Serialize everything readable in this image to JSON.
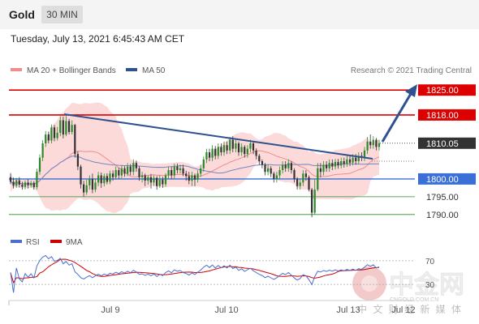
{
  "header": {
    "symbol": "Gold",
    "timeframe": "30 MIN"
  },
  "datetime": "Tuesday, July 13, 2021 6:45:43 AM CET",
  "legend": [
    {
      "label": "MA 20 + Bollinger Bands",
      "color": "#f08c8c"
    },
    {
      "label": "MA 50",
      "color": "#2e5190"
    }
  ],
  "copyright": "Research © 2021 Trading Central",
  "watermark": {
    "cn_big": "中金网",
    "domain": "CNGOLD.COM.CN",
    "cn_small": "中 文 财 经 新 媒 体"
  },
  "colors": {
    "resistance": "#dd0000",
    "support": "#3a6fd8",
    "secondary_support": "#2c8a2c",
    "current": "#333333",
    "candle_up": "#2a8a2a",
    "candle_down": "#333333",
    "bollinger_fill": "#fcdada",
    "arrow": "#2e5190"
  },
  "chart_data": {
    "type": "candlestick",
    "price_axis": {
      "range": [
        1787,
        1828
      ],
      "levels": [
        {
          "value": 1825.0,
          "label": "1825.00",
          "kind": "resistance"
        },
        {
          "value": 1818.0,
          "label": "1818.00",
          "kind": "resistance"
        },
        {
          "value": 1810.05,
          "label": "1810.05",
          "kind": "current"
        },
        {
          "value": 1800.0,
          "label": "1800.00",
          "kind": "support"
        },
        {
          "value": 1795.0,
          "label": "1795.00",
          "kind": "support-minor"
        },
        {
          "value": 1790.0,
          "label": "1790.00",
          "kind": "support-minor"
        }
      ]
    },
    "time_axis": {
      "ticks": [
        "Jul 9",
        "Jul 10",
        "Jul 13",
        "Jul 12"
      ]
    },
    "candles": [
      [
        1800.5,
        1799.2,
        1801.6,
        1798.5
      ],
      [
        1799.2,
        1798.1,
        1800.4,
        1797.3
      ],
      [
        1798.1,
        1799.6,
        1800.3,
        1797.5
      ],
      [
        1799.6,
        1798.4,
        1800.5,
        1797.6
      ],
      [
        1798.4,
        1797.8,
        1799.2,
        1797.0
      ],
      [
        1797.8,
        1799.0,
        1799.6,
        1797.1
      ],
      [
        1799.0,
        1798.2,
        1799.9,
        1797.3
      ],
      [
        1798.2,
        1798.9,
        1799.5,
        1797.6
      ],
      [
        1798.9,
        1797.7,
        1799.4,
        1797.0
      ],
      [
        1797.7,
        1802.0,
        1802.9,
        1797.1
      ],
      [
        1802.0,
        1806.0,
        1806.9,
        1801.2
      ],
      [
        1806.0,
        1810.0,
        1810.9,
        1805.0
      ],
      [
        1810.0,
        1812.5,
        1813.5,
        1809.0
      ],
      [
        1812.5,
        1810.8,
        1813.3,
        1810.0
      ],
      [
        1810.8,
        1814.5,
        1815.3,
        1810.0
      ],
      [
        1814.5,
        1811.5,
        1815.2,
        1810.6
      ],
      [
        1811.5,
        1813.0,
        1814.6,
        1810.8
      ],
      [
        1813.0,
        1816.5,
        1817.6,
        1812.0
      ],
      [
        1816.5,
        1812.5,
        1817.5,
        1811.4
      ],
      [
        1812.5,
        1816.3,
        1817.7,
        1812.0
      ],
      [
        1816.3,
        1813.2,
        1816.9,
        1812.5
      ],
      [
        1813.2,
        1815.2,
        1816.5,
        1812.5
      ],
      [
        1815.2,
        1807.0,
        1815.5,
        1806.0
      ],
      [
        1807.0,
        1803.5,
        1807.8,
        1802.5
      ],
      [
        1803.5,
        1798.5,
        1804.0,
        1797.3
      ],
      [
        1798.5,
        1796.2,
        1799.5,
        1795.0
      ],
      [
        1796.2,
        1798.2,
        1799.8,
        1795.5
      ],
      [
        1798.2,
        1800.0,
        1801.0,
        1797.0
      ],
      [
        1800.0,
        1797.0,
        1801.5,
        1796.0
      ],
      [
        1797.0,
        1799.0,
        1800.0,
        1796.3
      ],
      [
        1799.0,
        1801.0,
        1802.0,
        1798.0
      ],
      [
        1801.0,
        1798.8,
        1801.8,
        1797.5
      ],
      [
        1798.8,
        1800.8,
        1801.5,
        1797.9
      ],
      [
        1800.8,
        1799.2,
        1801.6,
        1798.5
      ],
      [
        1799.2,
        1801.5,
        1802.3,
        1798.5
      ],
      [
        1801.5,
        1800.5,
        1802.4,
        1799.5
      ],
      [
        1800.5,
        1802.5,
        1803.5,
        1799.8
      ],
      [
        1802.5,
        1801.0,
        1803.2,
        1800.0
      ],
      [
        1801.0,
        1803.0,
        1803.8,
        1800.2
      ],
      [
        1803.0,
        1801.5,
        1803.6,
        1800.6
      ],
      [
        1801.5,
        1803.5,
        1804.5,
        1800.8
      ],
      [
        1803.5,
        1802.0,
        1804.2,
        1801.0
      ],
      [
        1802.0,
        1804.5,
        1805.5,
        1801.0
      ],
      [
        1804.5,
        1803.0,
        1805.2,
        1802.0
      ],
      [
        1803.0,
        1800.5,
        1803.6,
        1799.5
      ],
      [
        1800.5,
        1801.0,
        1802.0,
        1799.0
      ],
      [
        1801.0,
        1799.5,
        1801.5,
        1798.0
      ],
      [
        1799.5,
        1800.5,
        1801.0,
        1798.4
      ],
      [
        1800.5,
        1799.0,
        1801.4,
        1797.3
      ],
      [
        1799.0,
        1800.3,
        1801.0,
        1798.0
      ],
      [
        1800.3,
        1798.0,
        1800.8,
        1797.0
      ],
      [
        1798.0,
        1799.8,
        1801.0,
        1797.5
      ],
      [
        1799.8,
        1798.5,
        1800.6,
        1797.5
      ],
      [
        1798.5,
        1801.0,
        1801.6,
        1797.8
      ],
      [
        1801.0,
        1802.5,
        1803.5,
        1800.0
      ],
      [
        1802.5,
        1801.0,
        1803.5,
        1800.0
      ],
      [
        1801.0,
        1803.5,
        1804.3,
        1800.1
      ],
      [
        1803.5,
        1802.5,
        1804.3,
        1801.5
      ],
      [
        1802.5,
        1803.0,
        1804.0,
        1801.5
      ],
      [
        1803.0,
        1801.5,
        1804.0,
        1800.8
      ],
      [
        1801.5,
        1800.8,
        1802.3,
        1799.5
      ],
      [
        1800.8,
        1799.5,
        1802.0,
        1798.5
      ],
      [
        1799.5,
        1801.0,
        1802.0,
        1798.0
      ],
      [
        1801.0,
        1799.8,
        1801.5,
        1798.0
      ],
      [
        1799.8,
        1801.5,
        1802.4,
        1799.0
      ],
      [
        1801.5,
        1803.0,
        1804.0,
        1800.6
      ],
      [
        1803.0,
        1805.5,
        1806.3,
        1802.0
      ],
      [
        1805.5,
        1807.5,
        1808.5,
        1804.5
      ],
      [
        1807.5,
        1806.0,
        1808.5,
        1805.0
      ],
      [
        1806.0,
        1808.5,
        1809.5,
        1805.0
      ],
      [
        1808.5,
        1806.5,
        1809.3,
        1805.5
      ],
      [
        1806.5,
        1809.0,
        1810.0,
        1805.6
      ],
      [
        1809.0,
        1807.5,
        1810.0,
        1806.5
      ],
      [
        1807.5,
        1809.5,
        1810.5,
        1806.5
      ],
      [
        1809.5,
        1808.0,
        1810.5,
        1807.0
      ],
      [
        1808.0,
        1811.0,
        1811.8,
        1807.0
      ],
      [
        1811.0,
        1808.5,
        1812.0,
        1807.5
      ],
      [
        1808.5,
        1810.0,
        1811.0,
        1807.5
      ],
      [
        1810.0,
        1807.5,
        1810.5,
        1806.5
      ],
      [
        1807.5,
        1809.0,
        1810.0,
        1806.5
      ],
      [
        1809.0,
        1807.0,
        1809.5,
        1806.0
      ],
      [
        1807.0,
        1808.5,
        1809.5,
        1806.0
      ],
      [
        1808.5,
        1810.0,
        1811.0,
        1807.5
      ],
      [
        1810.0,
        1808.0,
        1810.5,
        1807.0
      ],
      [
        1808.0,
        1806.5,
        1808.6,
        1805.5
      ],
      [
        1806.5,
        1805.0,
        1807.0,
        1804.0
      ],
      [
        1805.0,
        1804.0,
        1805.5,
        1803.0
      ],
      [
        1804.0,
        1802.0,
        1804.5,
        1801.0
      ],
      [
        1802.0,
        1803.0,
        1804.0,
        1801.0
      ],
      [
        1803.0,
        1801.5,
        1803.6,
        1800.5
      ],
      [
        1801.5,
        1800.0,
        1802.0,
        1799.0
      ],
      [
        1800.0,
        1801.0,
        1802.0,
        1799.0
      ],
      [
        1801.0,
        1802.5,
        1803.5,
        1800.0
      ],
      [
        1802.5,
        1804.0,
        1805.0,
        1801.5
      ],
      [
        1804.0,
        1803.0,
        1805.0,
        1802.0
      ],
      [
        1803.0,
        1804.5,
        1805.5,
        1802.0
      ],
      [
        1804.5,
        1802.5,
        1805.0,
        1801.5
      ],
      [
        1802.5,
        1800.0,
        1803.0,
        1799.0
      ],
      [
        1800.0,
        1798.0,
        1800.5,
        1797.0
      ],
      [
        1798.0,
        1799.0,
        1800.0,
        1797.0
      ],
      [
        1799.0,
        1801.5,
        1802.5,
        1798.0
      ],
      [
        1801.5,
        1800.5,
        1802.5,
        1799.5
      ],
      [
        1800.5,
        1797.0,
        1801.0,
        1796.5
      ],
      [
        1797.0,
        1790.5,
        1797.5,
        1789.2
      ],
      [
        1790.5,
        1797.0,
        1800.0,
        1790.0
      ],
      [
        1797.0,
        1803.0,
        1804.5,
        1796.5
      ],
      [
        1803.0,
        1802.0,
        1804.5,
        1800.5
      ],
      [
        1802.0,
        1804.0,
        1805.0,
        1801.0
      ],
      [
        1804.0,
        1803.0,
        1805.0,
        1802.0
      ],
      [
        1803.0,
        1804.5,
        1805.5,
        1802.0
      ],
      [
        1804.5,
        1803.5,
        1805.5,
        1802.5
      ],
      [
        1803.5,
        1804.8,
        1805.6,
        1802.7
      ],
      [
        1804.8,
        1803.8,
        1805.6,
        1802.9
      ],
      [
        1803.8,
        1805.0,
        1806.0,
        1803.0
      ],
      [
        1805.0,
        1804.2,
        1806.0,
        1803.2
      ],
      [
        1804.2,
        1805.5,
        1806.5,
        1803.4
      ],
      [
        1805.5,
        1804.6,
        1806.5,
        1803.6
      ],
      [
        1804.6,
        1806.0,
        1807.0,
        1803.8
      ],
      [
        1806.0,
        1805.0,
        1807.0,
        1804.0
      ],
      [
        1805.0,
        1806.5,
        1807.5,
        1804.2
      ],
      [
        1806.5,
        1806.0,
        1807.5,
        1805.0
      ],
      [
        1806.0,
        1808.0,
        1809.0,
        1805.0
      ],
      [
        1808.0,
        1810.5,
        1811.8,
        1807.0
      ],
      [
        1810.5,
        1809.5,
        1812.5,
        1808.5
      ],
      [
        1809.5,
        1811.0,
        1812.0,
        1808.5
      ],
      [
        1811.0,
        1809.0,
        1811.5,
        1808.0
      ],
      [
        1809.0,
        1810.05,
        1811.0,
        1808.0
      ]
    ],
    "indicators": [
      "MA 20 + Bollinger Bands",
      "MA 50"
    ],
    "annotations": [
      "descending trendline",
      "projected upward arrow toward 1825.00"
    ],
    "rsi_panel": {
      "legend": [
        {
          "label": "RSI",
          "color": "#4a6fd0"
        },
        {
          "label": "9MA",
          "color": "#cc0000"
        }
      ],
      "levels": [
        {
          "value": 70,
          "label": "70"
        },
        {
          "value": 30,
          "label": "30"
        }
      ],
      "range": [
        15,
        85
      ]
    }
  }
}
